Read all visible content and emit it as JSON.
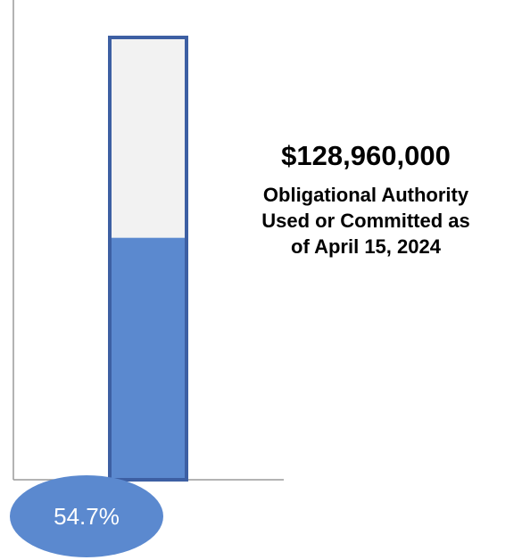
{
  "headline": {
    "amount": "$128,960,000",
    "caption": "Obligational Authority\nUsed or Committed as\nof April 15, 2024"
  },
  "colors": {
    "fill": "#5b89cf",
    "empty": "#f2f2f2",
    "outline": "#3d5fa3",
    "axis": "#9a9a9a",
    "badge_text": "#ffffff"
  },
  "chart_data": {
    "type": "bar",
    "values": [
      54.7
    ],
    "ylim": [
      0,
      100
    ],
    "data_label": "54.7%"
  }
}
